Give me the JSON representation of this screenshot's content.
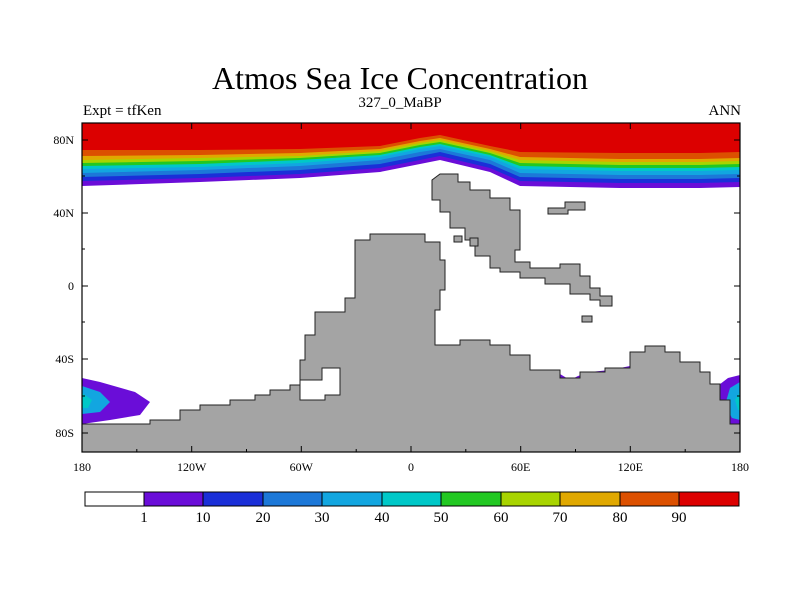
{
  "title": "Atmos Sea Ice Concentration",
  "subtitle": "327_0_MaBP",
  "left_label": "Expt = tfKen",
  "right_label": "ANN",
  "lat_labels": [
    "80N",
    "40N",
    "0",
    "40S",
    "80S"
  ],
  "lon_labels": [
    "180",
    "120W",
    "60W",
    "0",
    "60E",
    "120E",
    "180"
  ],
  "colorbar": {
    "labels": [
      "1",
      "10",
      "20",
      "30",
      "40",
      "50",
      "60",
      "70",
      "80",
      "90"
    ],
    "colors": [
      "#ffffff",
      "#6a0dd8",
      "#1a2fd8",
      "#1c78d8",
      "#12a6e0",
      "#00c8c8",
      "#22c822",
      "#a8d400",
      "#e0a800",
      "#dc5000",
      "#dc0000"
    ]
  },
  "colors": {
    "land": "#a4a4a4",
    "ice_max": "#dc0000"
  }
}
